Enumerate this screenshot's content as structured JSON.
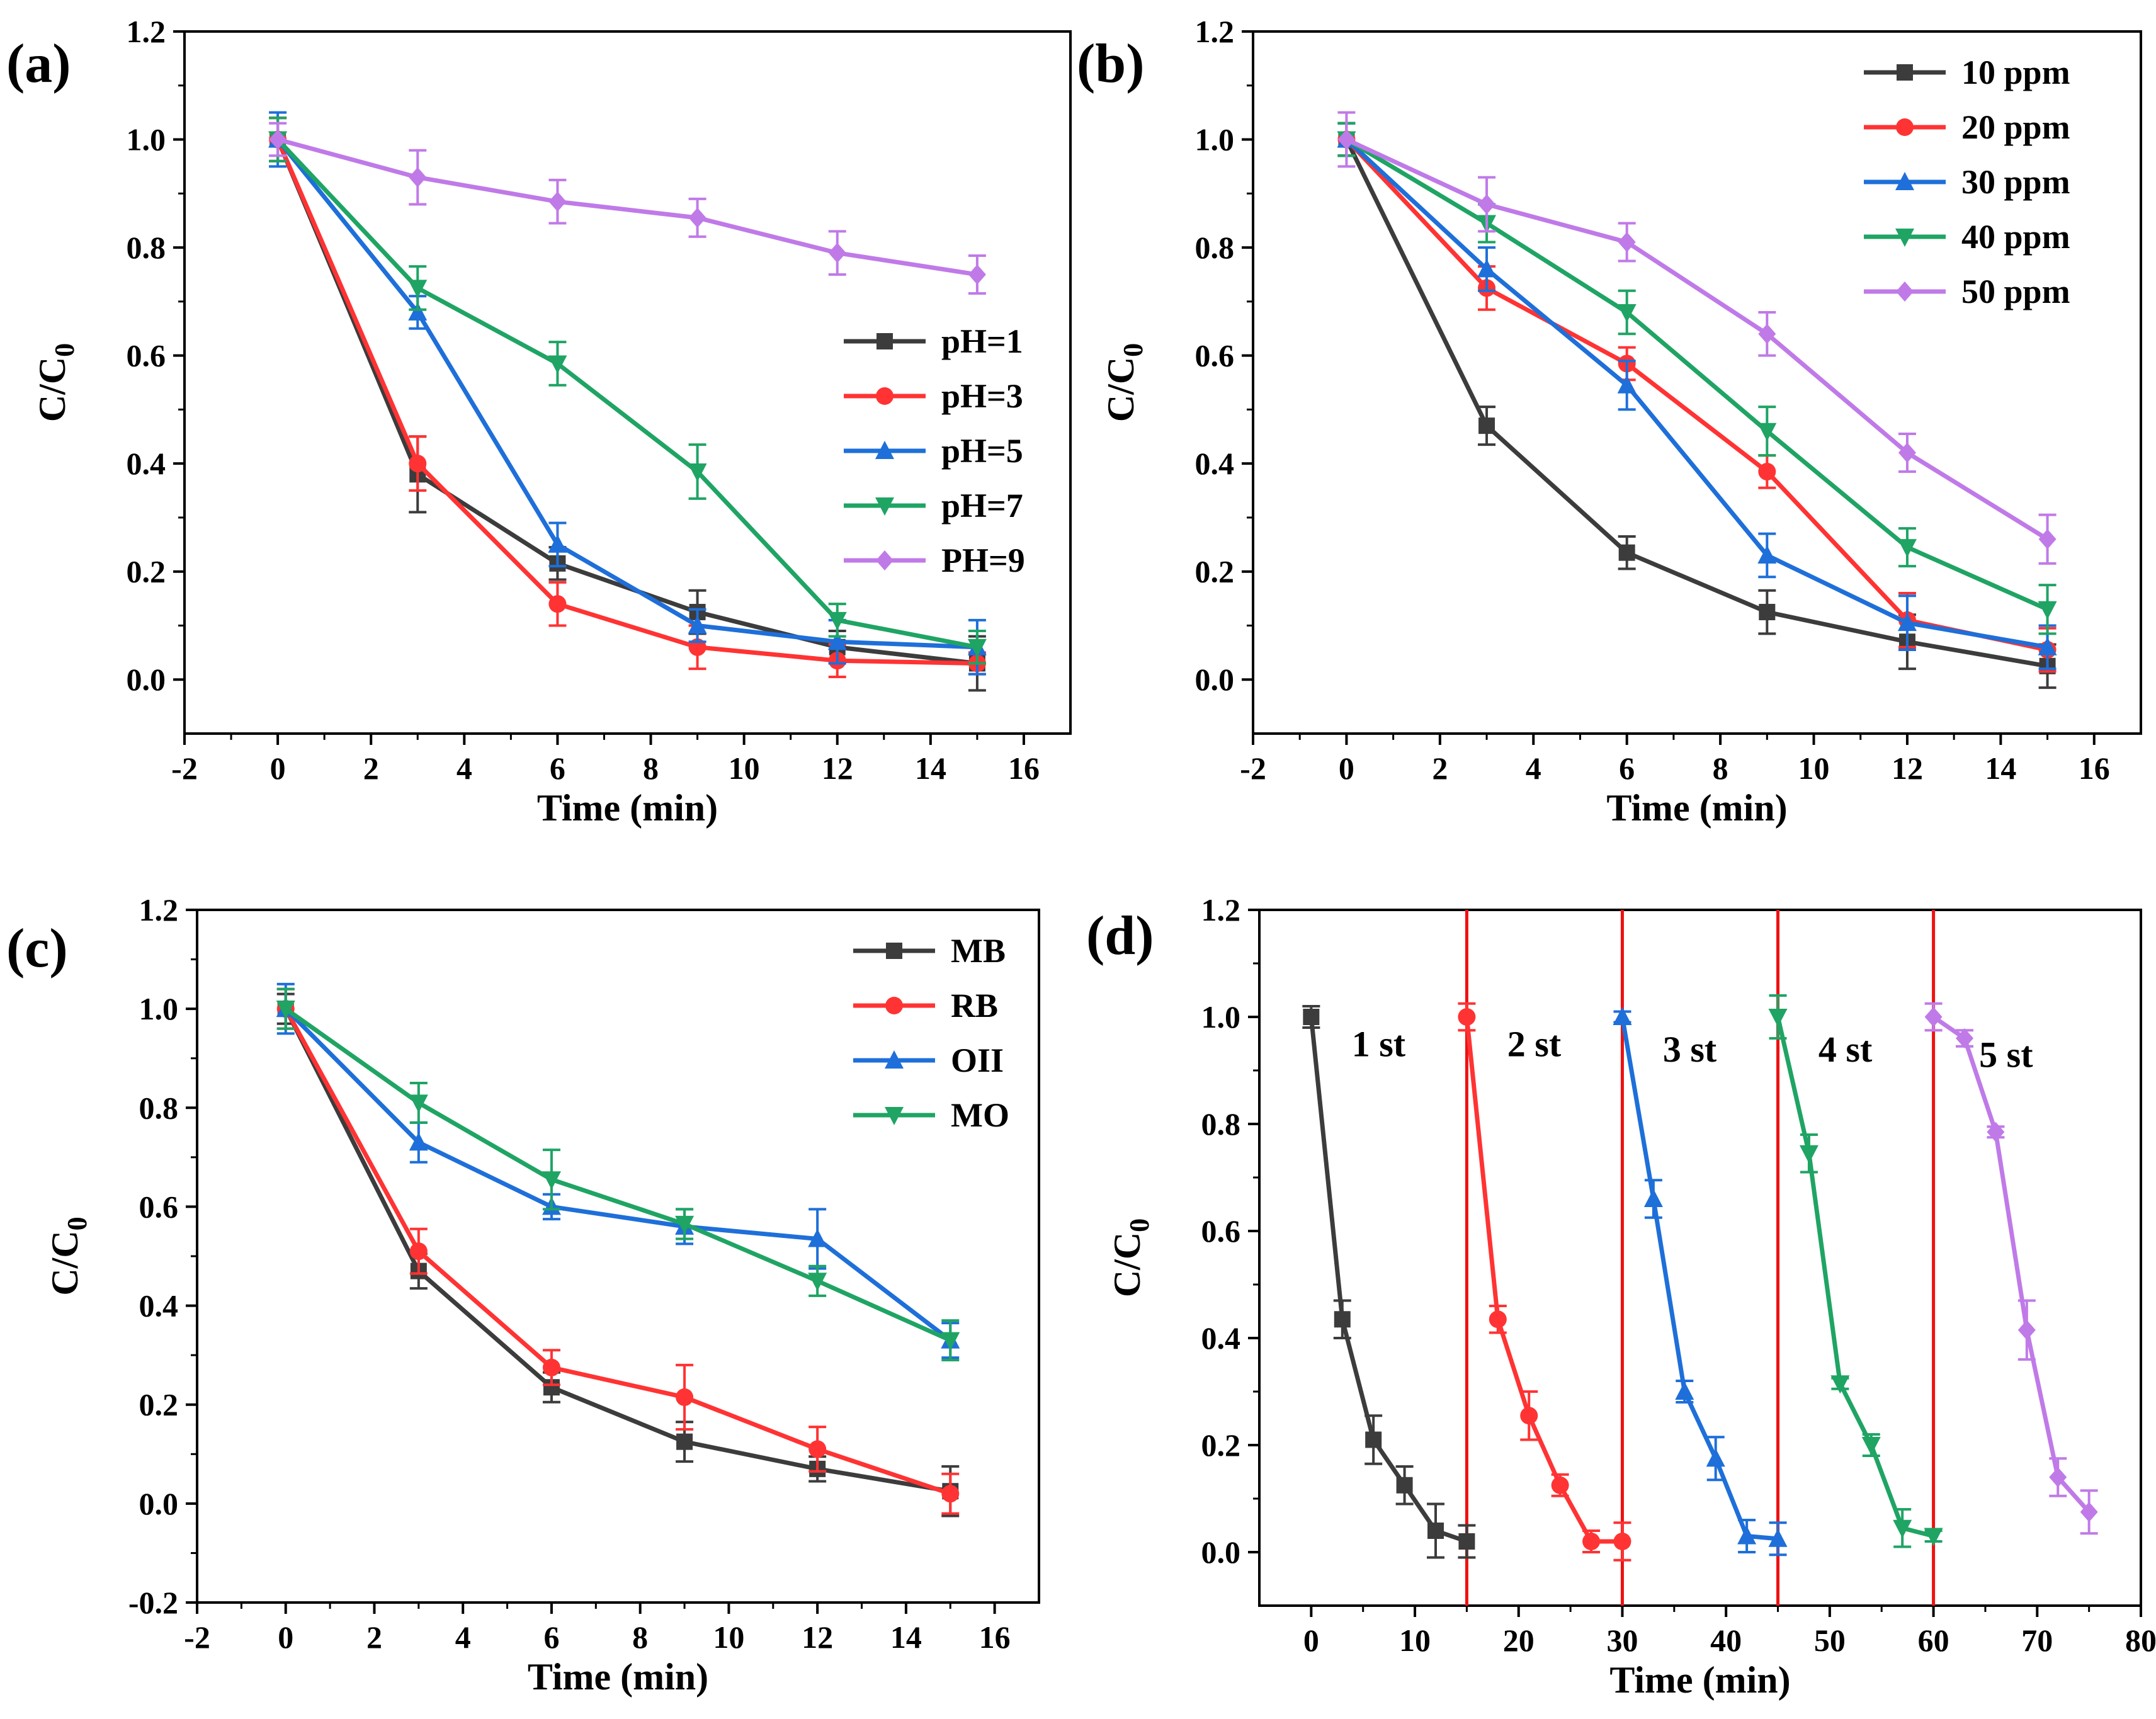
{
  "chart_data": [
    {
      "panel": "(a)",
      "type": "line",
      "xlabel": "Time (min)",
      "ylabel": "C/C",
      "ylabel_sub": "0",
      "xlim": [
        -2,
        17
      ],
      "ylim": [
        -0.1,
        1.2
      ],
      "xticks": [
        -2,
        0,
        2,
        4,
        6,
        8,
        10,
        12,
        14,
        16
      ],
      "yticks": [
        0.0,
        0.2,
        0.4,
        0.6,
        0.8,
        1.0,
        1.2
      ],
      "ytick_labels": [
        "0.0",
        "0.2",
        "0.4",
        "0.6",
        "0.8",
        "1.0",
        "1.2"
      ],
      "legend_position": "middle-right",
      "series": [
        {
          "name": "pH=1",
          "color": "#3c3c3c",
          "marker": "square",
          "x": [
            0,
            3,
            6,
            9,
            12,
            15
          ],
          "values": [
            1.0,
            0.38,
            0.215,
            0.125,
            0.06,
            0.03
          ],
          "errors": [
            0.04,
            0.07,
            0.03,
            0.04,
            0.03,
            0.05
          ]
        },
        {
          "name": "pH=3",
          "color": "#ff3333",
          "marker": "circle",
          "x": [
            0,
            3,
            6,
            9,
            12,
            15
          ],
          "values": [
            1.0,
            0.4,
            0.14,
            0.06,
            0.035,
            0.03
          ],
          "errors": [
            0.04,
            0.05,
            0.04,
            0.04,
            0.03,
            0.02
          ]
        },
        {
          "name": "pH=5",
          "color": "#1e6fd9",
          "marker": "triangle-up",
          "x": [
            0,
            3,
            6,
            9,
            12,
            15
          ],
          "values": [
            1.0,
            0.68,
            0.25,
            0.1,
            0.07,
            0.06
          ],
          "errors": [
            0.05,
            0.03,
            0.04,
            0.03,
            0.04,
            0.05
          ]
        },
        {
          "name": "pH=7",
          "color": "#1fa464",
          "marker": "triangle-down",
          "x": [
            0,
            3,
            6,
            9,
            12,
            15
          ],
          "values": [
            1.0,
            0.725,
            0.585,
            0.385,
            0.11,
            0.06
          ],
          "errors": [
            0.04,
            0.04,
            0.04,
            0.05,
            0.03,
            0.03
          ]
        },
        {
          "name": "PH=9",
          "color": "#c07ae8",
          "marker": "diamond",
          "x": [
            0,
            3,
            6,
            9,
            12,
            15
          ],
          "values": [
            1.0,
            0.93,
            0.885,
            0.855,
            0.79,
            0.75
          ],
          "errors": [
            0.03,
            0.05,
            0.04,
            0.035,
            0.04,
            0.035
          ]
        }
      ]
    },
    {
      "panel": "(b)",
      "type": "line",
      "xlabel": "Time (min)",
      "ylabel": "C/C",
      "ylabel_sub": "0",
      "xlim": [
        -2,
        17
      ],
      "ylim": [
        -0.1,
        1.2
      ],
      "xticks": [
        -2,
        0,
        2,
        4,
        6,
        8,
        10,
        12,
        14,
        16
      ],
      "yticks": [
        0.0,
        0.2,
        0.4,
        0.6,
        0.8,
        1.0,
        1.2
      ],
      "ytick_labels": [
        "0.0",
        "0.2",
        "0.4",
        "0.6",
        "0.8",
        "1.0",
        "1.2"
      ],
      "legend_position": "top-right",
      "series": [
        {
          "name": "10 ppm",
          "color": "#3c3c3c",
          "marker": "square",
          "x": [
            0,
            3,
            6,
            9,
            12,
            15
          ],
          "values": [
            1.0,
            0.47,
            0.235,
            0.125,
            0.07,
            0.025
          ],
          "errors": [
            0.03,
            0.035,
            0.03,
            0.04,
            0.05,
            0.04
          ]
        },
        {
          "name": "20 ppm",
          "color": "#ff3333",
          "marker": "circle",
          "x": [
            0,
            3,
            6,
            9,
            12,
            15
          ],
          "values": [
            1.0,
            0.725,
            0.585,
            0.385,
            0.11,
            0.055
          ],
          "errors": [
            0.03,
            0.04,
            0.03,
            0.03,
            0.05,
            0.04
          ]
        },
        {
          "name": "30 ppm",
          "color": "#1e6fd9",
          "marker": "triangle-up",
          "x": [
            0,
            3,
            6,
            9,
            12,
            15
          ],
          "values": [
            1.0,
            0.76,
            0.545,
            0.23,
            0.105,
            0.06
          ],
          "errors": [
            0.03,
            0.04,
            0.045,
            0.04,
            0.05,
            0.04
          ]
        },
        {
          "name": "40 ppm",
          "color": "#1fa464",
          "marker": "triangle-down",
          "x": [
            0,
            3,
            6,
            9,
            12,
            15
          ],
          "values": [
            1.0,
            0.845,
            0.68,
            0.46,
            0.245,
            0.13
          ],
          "errors": [
            0.03,
            0.035,
            0.04,
            0.045,
            0.035,
            0.045
          ]
        },
        {
          "name": "50 ppm",
          "color": "#c07ae8",
          "marker": "diamond",
          "x": [
            0,
            3,
            6,
            9,
            12,
            15
          ],
          "values": [
            1.0,
            0.88,
            0.81,
            0.64,
            0.42,
            0.26
          ],
          "errors": [
            0.05,
            0.05,
            0.035,
            0.04,
            0.035,
            0.045
          ]
        }
      ]
    },
    {
      "panel": "(c)",
      "type": "line",
      "xlabel": "Time (min)",
      "ylabel": "C/C",
      "ylabel_sub": "0",
      "xlim": [
        -2,
        17
      ],
      "ylim": [
        -0.2,
        1.2
      ],
      "xticks": [
        -2,
        0,
        2,
        4,
        6,
        8,
        10,
        12,
        14,
        16
      ],
      "yticks": [
        -0.2,
        0.0,
        0.2,
        0.4,
        0.6,
        0.8,
        1.0,
        1.2
      ],
      "ytick_labels": [
        "-0.2",
        "0.0",
        "0.2",
        "0.4",
        "0.6",
        "0.8",
        "1.0",
        "1.2"
      ],
      "legend_position": "top-right",
      "series": [
        {
          "name": "MB",
          "color": "#3c3c3c",
          "marker": "square",
          "x": [
            0,
            3,
            6,
            9,
            12,
            15
          ],
          "values": [
            1.0,
            0.47,
            0.235,
            0.125,
            0.07,
            0.025
          ],
          "errors": [
            0.03,
            0.035,
            0.03,
            0.04,
            0.025,
            0.05
          ]
        },
        {
          "name": "RB",
          "color": "#ff3333",
          "marker": "circle",
          "x": [
            0,
            3,
            6,
            9,
            12,
            15
          ],
          "values": [
            1.0,
            0.51,
            0.275,
            0.215,
            0.11,
            0.02
          ],
          "errors": [
            0.04,
            0.045,
            0.035,
            0.065,
            0.045,
            0.04
          ]
        },
        {
          "name": "OII",
          "color": "#1e6fd9",
          "marker": "triangle-up",
          "x": [
            0,
            3,
            6,
            9,
            12,
            15
          ],
          "values": [
            1.0,
            0.73,
            0.6,
            0.56,
            0.535,
            0.33
          ],
          "errors": [
            0.05,
            0.04,
            0.025,
            0.035,
            0.06,
            0.035
          ]
        },
        {
          "name": "MO",
          "color": "#1fa464",
          "marker": "triangle-down",
          "x": [
            0,
            3,
            6,
            9,
            12,
            15
          ],
          "values": [
            1.0,
            0.81,
            0.655,
            0.565,
            0.45,
            0.33
          ],
          "errors": [
            0.04,
            0.04,
            0.06,
            0.03,
            0.03,
            0.04
          ]
        }
      ]
    },
    {
      "panel": "(d)",
      "type": "line",
      "xlabel": "Time (min)",
      "ylabel": "C/C",
      "ylabel_sub": "0",
      "xlim": [
        -5,
        80
      ],
      "ylim": [
        -0.1,
        1.2
      ],
      "xticks": [
        0,
        10,
        20,
        30,
        40,
        50,
        60,
        70,
        80
      ],
      "yticks": [
        0.0,
        0.2,
        0.4,
        0.6,
        0.8,
        1.0,
        1.2
      ],
      "ytick_labels": [
        "0.0",
        "0.2",
        "0.4",
        "0.6",
        "0.8",
        "1.0",
        "1.2"
      ],
      "cycle_dividers_x": [
        15,
        30,
        45,
        60
      ],
      "cycle_divider_color": "#ee1111",
      "annotations": [
        {
          "text": "1 st",
          "x": 6.5,
          "y": 0.95
        },
        {
          "text": "2 st",
          "x": 21.5,
          "y": 0.95
        },
        {
          "text": "3 st",
          "x": 36.5,
          "y": 0.94
        },
        {
          "text": "4 st",
          "x": 51.5,
          "y": 0.94
        },
        {
          "text": "5 st",
          "x": 67,
          "y": 0.93
        }
      ],
      "series": [
        {
          "name": "1 st",
          "color": "#3c3c3c",
          "marker": "square",
          "x": [
            0,
            3,
            6,
            9,
            12,
            15
          ],
          "values": [
            1.0,
            0.435,
            0.21,
            0.125,
            0.04,
            0.02
          ],
          "errors": [
            0.02,
            0.035,
            0.045,
            0.035,
            0.05,
            0.03
          ]
        },
        {
          "name": "2 st",
          "color": "#ff3333",
          "marker": "circle",
          "x": [
            15,
            18,
            21,
            24,
            27,
            30
          ],
          "values": [
            1.0,
            0.435,
            0.255,
            0.125,
            0.02,
            0.02
          ],
          "errors": [
            0.025,
            0.025,
            0.045,
            0.02,
            0.02,
            0.035
          ]
        },
        {
          "name": "3 st",
          "color": "#1e6fd9",
          "marker": "triangle-up",
          "x": [
            30,
            33,
            36,
            39,
            42,
            45
          ],
          "values": [
            1.0,
            0.66,
            0.3,
            0.175,
            0.03,
            0.025
          ],
          "errors": [
            0.01,
            0.035,
            0.02,
            0.04,
            0.03,
            0.03
          ]
        },
        {
          "name": "4 st",
          "color": "#1fa464",
          "marker": "triangle-down",
          "x": [
            45,
            48,
            51,
            54,
            57,
            60
          ],
          "values": [
            1.0,
            0.745,
            0.315,
            0.2,
            0.045,
            0.03
          ],
          "errors": [
            0.04,
            0.035,
            0.01,
            0.02,
            0.035,
            0.01
          ]
        },
        {
          "name": "5 st",
          "color": "#c07ae8",
          "marker": "diamond",
          "x": [
            60,
            63,
            66,
            69,
            72,
            75
          ],
          "values": [
            1.0,
            0.96,
            0.785,
            0.415,
            0.14,
            0.075
          ],
          "errors": [
            0.025,
            0.015,
            0.01,
            0.055,
            0.035,
            0.04
          ]
        }
      ]
    }
  ]
}
